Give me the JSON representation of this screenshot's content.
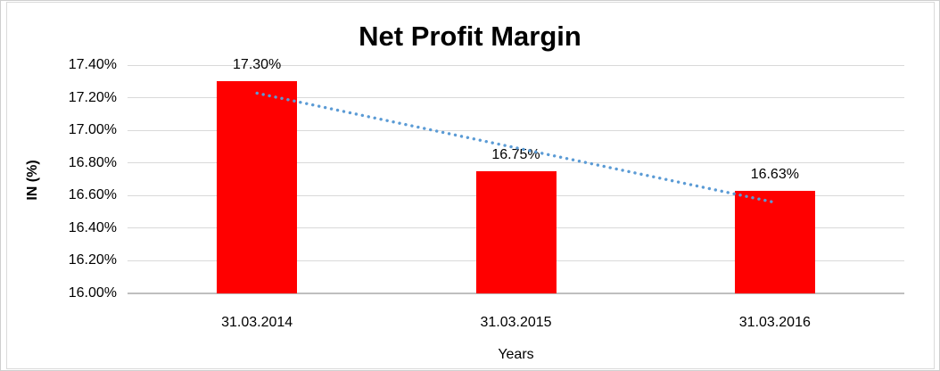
{
  "chart_data": {
    "type": "bar",
    "title": "Net Profit Margin",
    "categories": [
      "31.03.2014",
      "31.03.2015",
      "31.03.2016"
    ],
    "values": [
      17.3,
      16.75,
      16.63
    ],
    "data_labels": [
      "17.30%",
      "16.75%",
      "16.63%"
    ],
    "xlabel": "Years",
    "ylabel": "IN (%)",
    "ylim": [
      16.0,
      17.4
    ],
    "yticks": [
      {
        "value": 17.4,
        "label": "17.40%"
      },
      {
        "value": 17.2,
        "label": "17.20%"
      },
      {
        "value": 17.0,
        "label": "17.00%"
      },
      {
        "value": 16.8,
        "label": "16.80%"
      },
      {
        "value": 16.6,
        "label": "16.60%"
      },
      {
        "value": 16.4,
        "label": "16.40%"
      },
      {
        "value": 16.2,
        "label": "16.20%"
      },
      {
        "value": 16.0,
        "label": "16.00%"
      }
    ],
    "grid": true,
    "legend": "none",
    "bar_color": "#FF0000",
    "gridline_color": "#D9D9D9",
    "axis_line_color": "#BFBFBF",
    "text_color": "#000000",
    "trendline": {
      "type": "linear",
      "style": "dotted",
      "color": "#5B9BD5",
      "start_value": 17.228,
      "end_value": 16.558
    }
  }
}
